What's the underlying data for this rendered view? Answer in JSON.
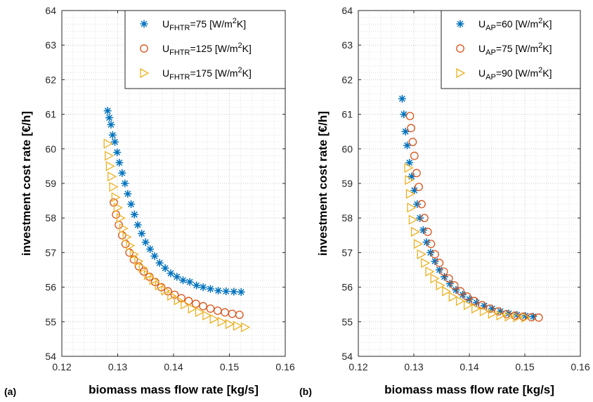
{
  "panels": [
    {
      "label": "(a)"
    },
    {
      "label": "(b)"
    }
  ],
  "chart_data": [
    {
      "type": "scatter",
      "xlabel": "biomass mass flow rate [kg/s]",
      "ylabel": "investment cost rate [€/h]",
      "xlim": [
        0.12,
        0.16
      ],
      "ylim": [
        54,
        64
      ],
      "xticks": [
        "0.12",
        "0.13",
        "0.14",
        "0.15",
        "0.16"
      ],
      "yticks": [
        "54",
        "55",
        "56",
        "57",
        "58",
        "59",
        "60",
        "61",
        "62",
        "63",
        "64"
      ],
      "grid": "major and minor dotted",
      "legend_position": "top-right",
      "series": [
        {
          "name": "U_FHTR=75 [W/m^2K]",
          "legend": {
            "pre": "U",
            "sub": "FHTR",
            "mid": "=75 [W/m",
            "sup": "2",
            "post": "K]"
          },
          "marker": "asterisk",
          "color": "#0072BD",
          "points": [
            [
              0.1282,
              61.1
            ],
            [
              0.1285,
              60.9
            ],
            [
              0.1288,
              60.7
            ],
            [
              0.1291,
              60.4
            ],
            [
              0.1295,
              60.2
            ],
            [
              0.1299,
              59.9
            ],
            [
              0.1303,
              59.6
            ],
            [
              0.1308,
              59.3
            ],
            [
              0.1313,
              59.0
            ],
            [
              0.1318,
              58.7
            ],
            [
              0.1324,
              58.4
            ],
            [
              0.133,
              58.1
            ],
            [
              0.1336,
              57.8
            ],
            [
              0.1343,
              57.55
            ],
            [
              0.135,
              57.3
            ],
            [
              0.1358,
              57.1
            ],
            [
              0.1366,
              56.9
            ],
            [
              0.1375,
              56.7
            ],
            [
              0.1385,
              56.55
            ],
            [
              0.1395,
              56.4
            ],
            [
              0.1406,
              56.3
            ],
            [
              0.1417,
              56.2
            ],
            [
              0.1429,
              56.15
            ],
            [
              0.1441,
              56.05
            ],
            [
              0.1453,
              56.0
            ],
            [
              0.1466,
              55.95
            ],
            [
              0.148,
              55.9
            ],
            [
              0.1494,
              55.88
            ],
            [
              0.1508,
              55.87
            ],
            [
              0.1521,
              55.86
            ]
          ]
        },
        {
          "name": "U_FHTR=125 [W/m^2K]",
          "legend": {
            "pre": "U",
            "sub": "FHTR",
            "mid": "=125 [W/m",
            "sup": "2",
            "post": "K]"
          },
          "marker": "circle",
          "color": "#D95319",
          "points": [
            [
              0.1293,
              58.45
            ],
            [
              0.1297,
              58.1
            ],
            [
              0.1302,
              57.8
            ],
            [
              0.1308,
              57.5
            ],
            [
              0.1314,
              57.25
            ],
            [
              0.1321,
              57.0
            ],
            [
              0.1329,
              56.8
            ],
            [
              0.1338,
              56.6
            ],
            [
              0.1347,
              56.45
            ],
            [
              0.1357,
              56.3
            ],
            [
              0.1367,
              56.15
            ],
            [
              0.1378,
              56.0
            ],
            [
              0.139,
              55.88
            ],
            [
              0.1402,
              55.78
            ],
            [
              0.1414,
              55.68
            ],
            [
              0.1427,
              55.6
            ],
            [
              0.144,
              55.52
            ],
            [
              0.1453,
              55.45
            ],
            [
              0.1466,
              55.38
            ],
            [
              0.1479,
              55.32
            ],
            [
              0.1492,
              55.27
            ],
            [
              0.1505,
              55.23
            ],
            [
              0.1518,
              55.2
            ]
          ]
        },
        {
          "name": "U_FHTR=175 [W/m^2K]",
          "legend": {
            "pre": "U",
            "sub": "FHTR",
            "mid": "=175 [W/m",
            "sup": "2",
            "post": "K]"
          },
          "marker": "triangle-right",
          "color": "#EDB120",
          "points": [
            [
              0.1282,
              60.15
            ],
            [
              0.1284,
              59.8
            ],
            [
              0.1286,
              59.5
            ],
            [
              0.1289,
              59.2
            ],
            [
              0.1292,
              58.9
            ],
            [
              0.1296,
              58.6
            ],
            [
              0.13,
              58.3
            ],
            [
              0.1305,
              58.0
            ],
            [
              0.131,
              57.7
            ],
            [
              0.1316,
              57.45
            ],
            [
              0.1322,
              57.2
            ],
            [
              0.1329,
              56.95
            ],
            [
              0.1337,
              56.75
            ],
            [
              0.1345,
              56.55
            ],
            [
              0.1354,
              56.35
            ],
            [
              0.1364,
              56.2
            ],
            [
              0.1374,
              56.05
            ],
            [
              0.1385,
              55.9
            ],
            [
              0.1396,
              55.75
            ],
            [
              0.1408,
              55.62
            ],
            [
              0.142,
              55.5
            ],
            [
              0.1433,
              55.38
            ],
            [
              0.1446,
              55.28
            ],
            [
              0.1459,
              55.18
            ],
            [
              0.1472,
              55.08
            ],
            [
              0.1486,
              55.0
            ],
            [
              0.15,
              54.93
            ],
            [
              0.1514,
              54.88
            ],
            [
              0.1528,
              54.84
            ]
          ]
        }
      ]
    },
    {
      "type": "scatter",
      "xlabel": "biomass mass flow rate [kg/s]",
      "ylabel": "investment cost rate [€/h]",
      "xlim": [
        0.12,
        0.16
      ],
      "ylim": [
        54,
        64
      ],
      "xticks": [
        "0.12",
        "0.13",
        "0.14",
        "0.15",
        "0.16"
      ],
      "yticks": [
        "54",
        "55",
        "56",
        "57",
        "58",
        "59",
        "60",
        "61",
        "62",
        "63",
        "64"
      ],
      "grid": "major and minor dotted",
      "legend_position": "top-right",
      "series": [
        {
          "name": "U_AP=60 [W/m^2K]",
          "legend": {
            "pre": "U",
            "sub": "AP",
            "mid": "=60 [W/m",
            "sup": "2",
            "post": "K]"
          },
          "marker": "asterisk",
          "color": "#0072BD",
          "points": [
            [
              0.1279,
              61.45
            ],
            [
              0.1282,
              61.0
            ],
            [
              0.1285,
              60.5
            ],
            [
              0.1288,
              60.1
            ],
            [
              0.1292,
              59.6
            ],
            [
              0.1296,
              59.2
            ],
            [
              0.1301,
              58.8
            ],
            [
              0.1306,
              58.4
            ],
            [
              0.1311,
              58.0
            ],
            [
              0.1317,
              57.65
            ],
            [
              0.1323,
              57.3
            ],
            [
              0.133,
              57.0
            ],
            [
              0.1338,
              56.75
            ],
            [
              0.1346,
              56.5
            ],
            [
              0.1355,
              56.3
            ],
            [
              0.1365,
              56.1
            ],
            [
              0.1376,
              55.92
            ],
            [
              0.1388,
              55.78
            ],
            [
              0.14,
              55.65
            ],
            [
              0.1413,
              55.55
            ],
            [
              0.1427,
              55.46
            ],
            [
              0.1441,
              55.38
            ],
            [
              0.1456,
              55.3
            ],
            [
              0.1471,
              55.24
            ],
            [
              0.1486,
              55.2
            ],
            [
              0.1501,
              55.17
            ],
            [
              0.1515,
              55.15
            ]
          ]
        },
        {
          "name": "U_AP=75 [W/m^2K]",
          "legend": {
            "pre": "U",
            "sub": "AP",
            "mid": "=75 [W/m",
            "sup": "2",
            "post": "K]"
          },
          "marker": "circle",
          "color": "#D95319",
          "points": [
            [
              0.1293,
              60.95
            ],
            [
              0.1295,
              60.6
            ],
            [
              0.1298,
              60.2
            ],
            [
              0.1301,
              59.8
            ],
            [
              0.1305,
              59.3
            ],
            [
              0.1309,
              58.9
            ],
            [
              0.1314,
              58.4
            ],
            [
              0.1319,
              58.0
            ],
            [
              0.1325,
              57.6
            ],
            [
              0.1331,
              57.25
            ],
            [
              0.1338,
              56.95
            ],
            [
              0.1346,
              56.7
            ],
            [
              0.1354,
              56.45
            ],
            [
              0.1363,
              56.25
            ],
            [
              0.1373,
              56.05
            ],
            [
              0.1384,
              55.88
            ],
            [
              0.1396,
              55.73
            ],
            [
              0.1409,
              55.6
            ],
            [
              0.1423,
              55.48
            ],
            [
              0.1437,
              55.38
            ],
            [
              0.1452,
              55.3
            ],
            [
              0.1467,
              55.22
            ],
            [
              0.1482,
              55.18
            ],
            [
              0.1497,
              55.15
            ],
            [
              0.1512,
              55.13
            ],
            [
              0.1525,
              55.12
            ]
          ]
        },
        {
          "name": "U_AP=90 [W/m^2K]",
          "legend": {
            "pre": "U",
            "sub": "AP",
            "mid": "=90 [W/m",
            "sup": "2",
            "post": "K]"
          },
          "marker": "triangle-right",
          "color": "#EDB120",
          "points": [
            [
              0.129,
              59.45
            ],
            [
              0.1291,
              59.1
            ],
            [
              0.1293,
              58.7
            ],
            [
              0.1295,
              58.3
            ],
            [
              0.1298,
              57.95
            ],
            [
              0.1302,
              57.6
            ],
            [
              0.1307,
              57.25
            ],
            [
              0.1313,
              56.95
            ],
            [
              0.132,
              56.7
            ],
            [
              0.1328,
              56.45
            ],
            [
              0.1337,
              56.25
            ],
            [
              0.1347,
              56.05
            ],
            [
              0.1358,
              55.88
            ],
            [
              0.137,
              55.72
            ],
            [
              0.1383,
              55.6
            ],
            [
              0.1397,
              55.48
            ],
            [
              0.1411,
              55.38
            ],
            [
              0.1426,
              55.3
            ],
            [
              0.1441,
              55.23
            ],
            [
              0.1456,
              55.18
            ],
            [
              0.1471,
              55.15
            ],
            [
              0.1486,
              55.13
            ],
            [
              0.1501,
              55.12
            ]
          ]
        }
      ]
    }
  ]
}
